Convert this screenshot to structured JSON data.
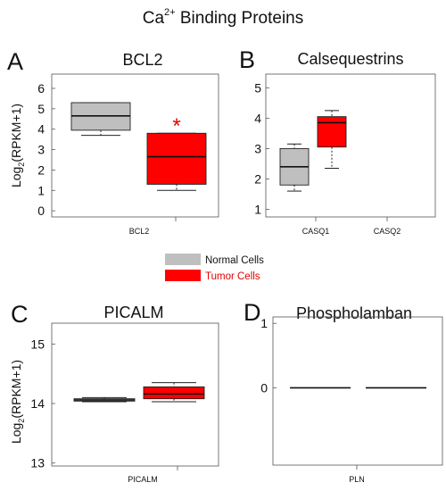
{
  "figure": {
    "title_main": "Ca",
    "title_sup": "2+",
    "title_rest": " Binding Proteins",
    "legend": [
      {
        "label": "Normal Cells",
        "color": "#bfbfbf",
        "text_color": "#222222"
      },
      {
        "label": "Tumor Cells",
        "color": "#ff0000",
        "text_color": "#e00000"
      }
    ]
  },
  "panels": [
    {
      "letter": "A",
      "title": "BCL2"
    },
    {
      "letter": "B",
      "title": "Calsequestrins"
    },
    {
      "letter": "C",
      "title": "PICALM"
    },
    {
      "letter": "D",
      "title": "Phospholamban"
    }
  ],
  "chart_data": [
    {
      "type": "boxplot",
      "title": "BCL2",
      "ylabel": "Log2(RPKM+1)",
      "ylim": [
        -0.3,
        6.7
      ],
      "yticks": [
        0,
        1,
        2,
        3,
        4,
        5,
        6
      ],
      "categories": [
        "BCL2"
      ],
      "groups": [
        "Normal Cells",
        "Tumor Cells"
      ],
      "boxes": [
        {
          "category": "BCL2",
          "group": "Normal Cells",
          "whisker_low": 3.7,
          "q1": 3.95,
          "median": 4.65,
          "q3": 5.3,
          "whisker_high": 5.3
        },
        {
          "category": "BCL2",
          "group": "Tumor Cells",
          "whisker_low": 1.0,
          "q1": 1.3,
          "median": 2.65,
          "q3": 3.8,
          "whisker_high": 3.8
        }
      ],
      "annotations": [
        {
          "text": "*",
          "color": "#e00000"
        }
      ]
    },
    {
      "type": "boxplot",
      "title": "Calsequestrins",
      "ylim": [
        0.75,
        5.45
      ],
      "yticks": [
        1,
        2,
        3,
        4,
        5
      ],
      "categories": [
        "CASQ1",
        "CASQ2"
      ],
      "groups": [
        "Normal Cells",
        "Tumor Cells"
      ],
      "boxes": [
        {
          "category": "CASQ1",
          "group": "Normal Cells",
          "whisker_low": 1.6,
          "q1": 1.8,
          "median": 2.4,
          "q3": 3.0,
          "whisker_high": 3.15
        },
        {
          "category": "CASQ1",
          "group": "Tumor Cells",
          "whisker_low": 2.35,
          "q1": 3.05,
          "median": 3.85,
          "q3": 4.05,
          "whisker_high": 4.25
        }
      ]
    },
    {
      "type": "boxplot",
      "title": "PICALM",
      "ylabel": "Log2(RPKM+1)",
      "ylim": [
        12.95,
        15.35
      ],
      "yticks": [
        13,
        14,
        15
      ],
      "categories": [
        "PICALM"
      ],
      "groups": [
        "Normal Cells",
        "Tumor Cells"
      ],
      "boxes": [
        {
          "category": "PICALM",
          "group": "Normal Cells",
          "whisker_low": 14.03,
          "q1": 14.04,
          "median": 14.06,
          "q3": 14.08,
          "whisker_high": 14.1
        },
        {
          "category": "PICALM",
          "group": "Tumor Cells",
          "whisker_low": 14.03,
          "q1": 14.08,
          "median": 14.16,
          "q3": 14.28,
          "whisker_high": 14.35
        }
      ]
    },
    {
      "type": "boxplot",
      "title": "Phospholamban",
      "ylim": [
        -1.2,
        1.1
      ],
      "yticks": [
        0,
        1
      ],
      "categories": [
        "PLN"
      ],
      "groups": [
        "Normal Cells",
        "Tumor Cells"
      ],
      "boxes": [
        {
          "category": "PLN",
          "group": "Normal Cells",
          "whisker_low": 0,
          "q1": 0,
          "median": 0,
          "q3": 0,
          "whisker_high": 0
        },
        {
          "category": "PLN",
          "group": "Tumor Cells",
          "whisker_low": 0,
          "q1": 0,
          "median": 0,
          "q3": 0,
          "whisker_high": 0
        }
      ]
    }
  ]
}
